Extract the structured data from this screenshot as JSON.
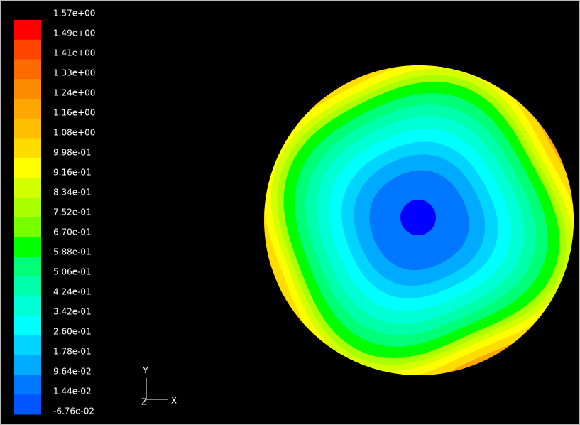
{
  "colorbar": {
    "labels": [
      "1.57e+00",
      "1.49e+00",
      "1.41e+00",
      "1.33e+00",
      "1.24e+00",
      "1.16e+00",
      "1.08e+00",
      "9.98e-01",
      "9.16e-01",
      "8.34e-01",
      "7.52e-01",
      "6.70e-01",
      "5.88e-01",
      "5.06e-01",
      "4.24e-01",
      "3.42e-01",
      "2.60e-01",
      "1.78e-01",
      "9.64e-02",
      "1.44e-02",
      "-6.76e-02"
    ],
    "colors": [
      "#ff0000",
      "#ff4400",
      "#ff6a00",
      "#ff8c00",
      "#ffa600",
      "#ffbf00",
      "#ffdc00",
      "#ffff00",
      "#d4ff00",
      "#aaff00",
      "#77ff00",
      "#00ff00",
      "#00ff77",
      "#00ffaa",
      "#00ffd4",
      "#00ffff",
      "#00d4ff",
      "#00aaff",
      "#0077ff",
      "#0055ff"
    ]
  },
  "axes_triad": {
    "y": "Y",
    "z": "Z",
    "x": "X"
  }
}
